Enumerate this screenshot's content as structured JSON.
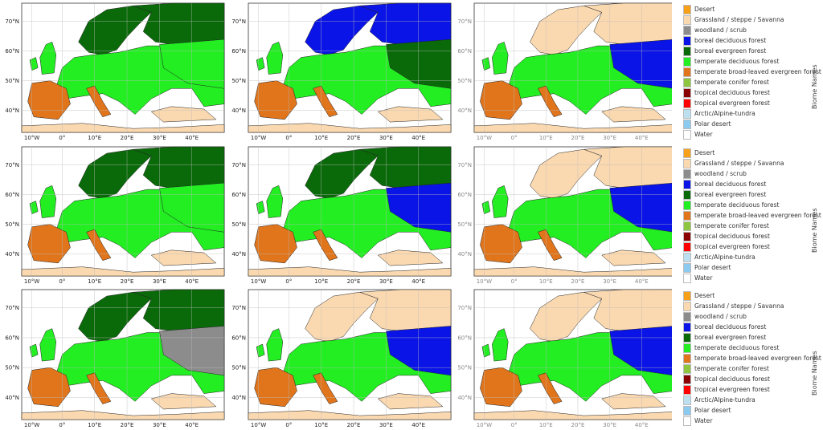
{
  "legend_title": "Biome Names",
  "biomes": [
    {
      "name": "Desert",
      "color": "#f7a11a"
    },
    {
      "name": "Grassland / steppe / Savanna",
      "color": "#fbd9b0"
    },
    {
      "name": "woodland / scrub",
      "color": "#8c8c8c"
    },
    {
      "name": "boreal deciduous forest",
      "color": "#0a14e6"
    },
    {
      "name": "boreal evergreen forest",
      "color": "#0a6a0a"
    },
    {
      "name": "temperate deciduous forest",
      "color": "#22ee22"
    },
    {
      "name": "temperate broad-leaved evergreen forest",
      "color": "#e0751c"
    },
    {
      "name": "temperate conifer forest",
      "color": "#8ec63f"
    },
    {
      "name": "tropical deciduous forest",
      "color": "#8b0000"
    },
    {
      "name": "tropical evergreen forest",
      "color": "#ff0000"
    },
    {
      "name": "Arctic/Alpine-tundra",
      "color": "#bde0f0"
    },
    {
      "name": "Polar desert",
      "color": "#8ccaf0"
    },
    {
      "name": "Water",
      "color": "#ffffff"
    }
  ],
  "lat_labels": [
    "70°N",
    "60°N",
    "50°N",
    "40°N"
  ],
  "lon_labels": [
    "10°W",
    "0°",
    "10°E",
    "20°E",
    "30°E",
    "40°E"
  ],
  "panels": [
    {
      "dominant": "temperate deciduous forest",
      "north": "boreal evergreen forest",
      "east": "temperate deciduous forest"
    },
    {
      "dominant": "temperate deciduous forest",
      "north": "boreal deciduous forest",
      "east": "boreal evergreen forest"
    },
    {
      "dominant": "temperate deciduous forest",
      "north": "Grassland / steppe / Savanna",
      "east": "boreal deciduous forest"
    },
    {
      "dominant": "temperate deciduous forest",
      "north": "boreal evergreen forest",
      "east": "temperate deciduous forest"
    },
    {
      "dominant": "temperate deciduous forest",
      "north": "boreal evergreen forest",
      "east": "boreal deciduous forest"
    },
    {
      "dominant": "temperate deciduous forest",
      "north": "Grassland / steppe / Savanna",
      "east": "boreal deciduous forest"
    },
    {
      "dominant": "temperate deciduous forest",
      "north": "boreal evergreen forest",
      "east": "woodland / scrub"
    },
    {
      "dominant": "temperate deciduous forest",
      "north": "Grassland / steppe / Savanna",
      "east": "boreal deciduous forest"
    },
    {
      "dominant": "temperate deciduous forest",
      "north": "Grassland / steppe / Savanna",
      "east": "boreal deciduous forest"
    }
  ]
}
